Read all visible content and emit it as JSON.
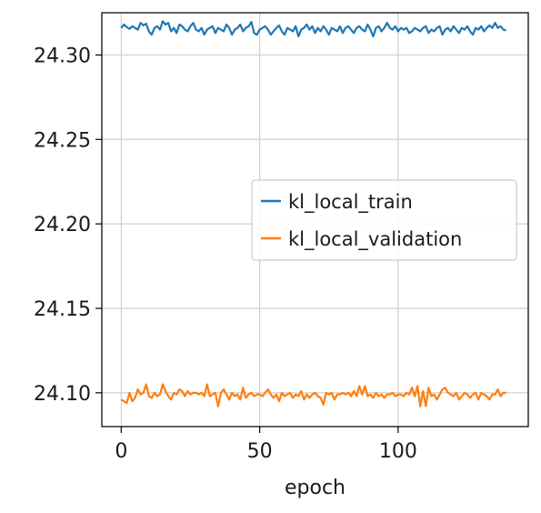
{
  "chart_data": {
    "type": "line",
    "title": "",
    "xlabel": "epoch",
    "ylabel": "",
    "xlim": [
      -7,
      147
    ],
    "ylim": [
      24.08,
      24.325
    ],
    "x_ticks": [
      0,
      50,
      100
    ],
    "x_tick_labels": [
      "0",
      "50",
      "100"
    ],
    "y_ticks": [
      24.1,
      24.15,
      24.2,
      24.25,
      24.3
    ],
    "y_tick_labels": [
      "24.10",
      "24.15",
      "24.20",
      "24.25",
      "24.30"
    ],
    "grid": true,
    "legend_position": "center-right",
    "x": [
      0,
      1,
      2,
      3,
      4,
      5,
      6,
      7,
      8,
      9,
      10,
      11,
      12,
      13,
      14,
      15,
      16,
      17,
      18,
      19,
      20,
      21,
      22,
      23,
      24,
      25,
      26,
      27,
      28,
      29,
      30,
      31,
      32,
      33,
      34,
      35,
      36,
      37,
      38,
      39,
      40,
      41,
      42,
      43,
      44,
      45,
      46,
      47,
      48,
      49,
      50,
      51,
      52,
      53,
      54,
      55,
      56,
      57,
      58,
      59,
      60,
      61,
      62,
      63,
      64,
      65,
      66,
      67,
      68,
      69,
      70,
      71,
      72,
      73,
      74,
      75,
      76,
      77,
      78,
      79,
      80,
      81,
      82,
      83,
      84,
      85,
      86,
      87,
      88,
      89,
      90,
      91,
      92,
      93,
      94,
      95,
      96,
      97,
      98,
      99,
      100,
      101,
      102,
      103,
      104,
      105,
      106,
      107,
      108,
      109,
      110,
      111,
      112,
      113,
      114,
      115,
      116,
      117,
      118,
      119,
      120,
      121,
      122,
      123,
      124,
      125,
      126,
      127,
      128,
      129,
      130,
      131,
      132,
      133,
      134,
      135,
      136,
      137,
      138,
      139
    ],
    "series": [
      {
        "name": "kl_local_train",
        "color": "#1f77b4",
        "values": [
          24.316,
          24.318,
          24.3165,
          24.3155,
          24.317,
          24.316,
          24.315,
          24.319,
          24.3175,
          24.3185,
          24.314,
          24.312,
          24.316,
          24.317,
          24.315,
          24.32,
          24.318,
          24.319,
          24.314,
          24.316,
          24.313,
          24.318,
          24.317,
          24.315,
          24.314,
          24.317,
          24.319,
          24.315,
          24.314,
          24.316,
          24.312,
          24.315,
          24.316,
          24.317,
          24.313,
          24.316,
          24.315,
          24.314,
          24.318,
          24.316,
          24.312,
          24.315,
          24.316,
          24.318,
          24.314,
          24.316,
          24.317,
          24.3195,
          24.313,
          24.312,
          24.315,
          24.316,
          24.317,
          24.315,
          24.312,
          24.314,
          24.316,
          24.3175,
          24.314,
          24.312,
          24.316,
          24.315,
          24.314,
          24.317,
          24.311,
          24.315,
          24.316,
          24.318,
          24.315,
          24.317,
          24.313,
          24.316,
          24.314,
          24.317,
          24.315,
          24.312,
          24.316,
          24.315,
          24.314,
          24.317,
          24.313,
          24.316,
          24.317,
          24.315,
          24.313,
          24.316,
          24.317,
          24.315,
          24.314,
          24.318,
          24.315,
          24.311,
          24.316,
          24.317,
          24.314,
          24.316,
          24.319,
          24.316,
          24.315,
          24.317,
          24.314,
          24.316,
          24.315,
          24.316,
          24.313,
          24.314,
          24.316,
          24.315,
          24.314,
          24.316,
          24.317,
          24.313,
          24.315,
          24.314,
          24.316,
          24.317,
          24.312,
          24.315,
          24.316,
          24.314,
          24.317,
          24.315,
          24.313,
          24.316,
          24.315,
          24.317,
          24.314,
          24.312,
          24.316,
          24.315,
          24.317,
          24.314,
          24.316,
          24.3175,
          24.316,
          24.319,
          24.316,
          24.317,
          24.315,
          24.3145
        ]
      },
      {
        "name": "kl_local_validation",
        "color": "#ff7f0e",
        "values": [
          24.096,
          24.095,
          24.094,
          24.1,
          24.095,
          24.097,
          24.102,
          24.099,
          24.1,
          24.105,
          24.098,
          24.097,
          24.1,
          24.098,
          24.099,
          24.105,
          24.101,
          24.098,
          24.096,
          24.1,
          24.099,
          24.102,
          24.101,
          24.098,
          24.101,
          24.099,
          24.1,
          24.1,
          24.099,
          24.1,
          24.098,
          24.105,
          24.098,
          24.099,
          24.1,
          24.092,
          24.1,
          24.102,
          24.099,
          24.096,
          24.1,
          24.098,
          24.099,
          24.096,
          24.103,
          24.097,
          24.099,
          24.1,
          24.098,
          24.099,
          24.099,
          24.098,
          24.1,
          24.102,
          24.099,
          24.097,
          24.099,
          24.095,
          24.1,
          24.098,
          24.099,
          24.1,
          24.097,
          24.099,
          24.098,
          24.101,
          24.096,
          24.099,
          24.097,
          24.099,
          24.1,
          24.098,
          24.097,
          24.093,
          24.1,
          24.099,
          24.1,
          24.096,
          24.099,
          24.099,
          24.1,
          24.099,
          24.1,
          24.098,
          24.101,
          24.098,
          24.104,
          24.099,
          24.104,
          24.098,
          24.099,
          24.097,
          24.1,
          24.098,
          24.099,
          24.097,
          24.099,
          24.099,
          24.1,
          24.098,
          24.099,
          24.099,
          24.098,
          24.1,
          24.099,
          24.103,
          24.098,
          24.104,
          24.092,
          24.101,
          24.092,
          24.103,
          24.098,
          24.099,
          24.096,
          24.099,
          24.102,
          24.103,
          24.1,
          24.099,
          24.098,
          24.1,
          24.096,
          24.098,
          24.1,
          24.099,
          24.097,
          24.099,
          24.1,
          24.096,
          24.1,
          24.099,
          24.098,
          24.096,
          24.099,
          24.099,
          24.102,
          24.098,
          24.1,
          24.1
        ]
      }
    ]
  }
}
